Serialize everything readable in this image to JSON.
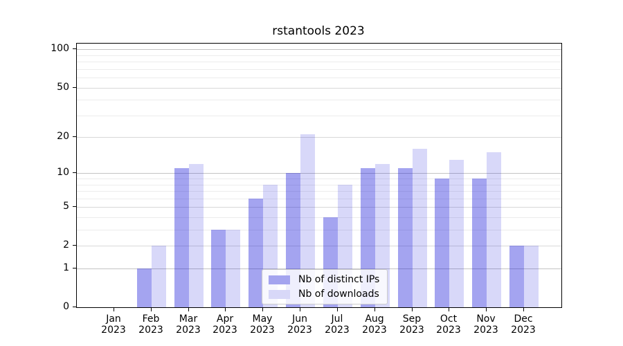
{
  "title": "rstantools 2023",
  "chart_data": {
    "type": "bar",
    "title": "rstantools 2023",
    "categories": [
      "Jan 2023",
      "Feb 2023",
      "Mar 2023",
      "Apr 2023",
      "May 2023",
      "Jun 2023",
      "Jul 2023",
      "Aug 2023",
      "Sep 2023",
      "Oct 2023",
      "Nov 2023",
      "Dec 2023"
    ],
    "series": [
      {
        "name": "Nb of distinct IPs",
        "values": [
          0,
          1,
          11,
          3,
          6,
          10,
          4,
          11,
          11,
          9,
          9,
          2
        ],
        "color": "#a4a4ef",
        "fill_rgba": "rgba(15,15,215,0.38)"
      },
      {
        "name": "Nb of downloads",
        "values": [
          0,
          2,
          12,
          3,
          8,
          21,
          8,
          12,
          16,
          13,
          15,
          2
        ],
        "color": "#d8d8f8",
        "fill_rgba": "rgba(15,15,215,0.16)"
      }
    ],
    "xlabel": "",
    "ylabel": "",
    "yscale": "log1p",
    "yticks": [
      0,
      1,
      2,
      5,
      10,
      20,
      50,
      100
    ],
    "ylim": [
      0,
      111
    ],
    "grid": true,
    "legend_position": "inside lower center"
  },
  "grid_colors": {
    "major": "#c3c3c3",
    "labeled": "#d8d8d8",
    "minor": "#ececec"
  }
}
